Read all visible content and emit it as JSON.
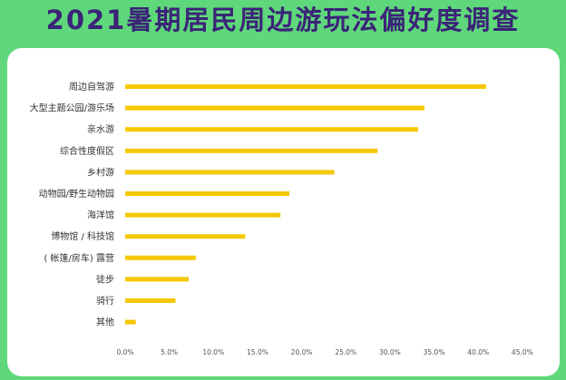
{
  "title": "2021暑期居民周边游玩法偏好度调查",
  "colors": {
    "background": "#5ed87a",
    "title": "#3b2478",
    "bar": "#f5c800",
    "panel": "#ffffff"
  },
  "chart_data": {
    "type": "bar",
    "orientation": "horizontal",
    "categories": [
      "周边自驾游",
      "大型主题公园/游乐场",
      "亲水游",
      "综合性度假区",
      "乡村游",
      "动物园/野生动物园",
      "海洋馆",
      "博物馆 / 科技馆",
      "( 帐篷/房车) 露营",
      "徒步",
      "骑行",
      "其他"
    ],
    "values": [
      40.9,
      33.9,
      33.2,
      28.6,
      23.7,
      18.6,
      17.6,
      13.6,
      8.0,
      7.2,
      5.7,
      1.2
    ],
    "unit": "%",
    "xlim": [
      0,
      45
    ],
    "xticks": [
      "0.0%",
      "5.0%",
      "10.0%",
      "15.0%",
      "20.0%",
      "25.0%",
      "30.0%",
      "35.0%",
      "40.0%",
      "45.0%"
    ],
    "grid": false
  }
}
